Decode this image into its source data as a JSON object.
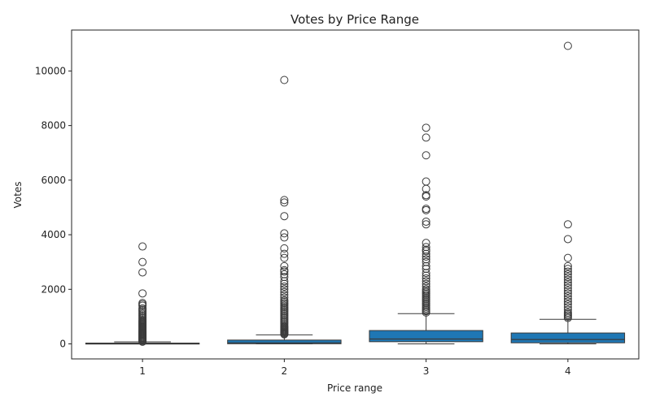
{
  "chart_data": {
    "type": "box",
    "title": "Votes by Price Range",
    "xlabel": "Price range",
    "ylabel": "Votes",
    "categories": [
      "1",
      "2",
      "3",
      "4"
    ],
    "yticks": [
      0,
      2000,
      4000,
      6000,
      8000,
      10000
    ],
    "ylim": [
      -550,
      11500
    ],
    "grid": false,
    "color": "#1f77b4",
    "boxes": [
      {
        "category": "1",
        "whisker_low": 0,
        "q1": 0,
        "median": 10,
        "q3": 30,
        "whisker_high": 75,
        "outliers": [
          80,
          110,
          140,
          170,
          200,
          230,
          260,
          290,
          320,
          350,
          380,
          410,
          440,
          470,
          500,
          530,
          560,
          590,
          620,
          650,
          680,
          710,
          740,
          770,
          800,
          830,
          860,
          900,
          950,
          1000,
          1050,
          1100,
          1150,
          1200,
          1250,
          1300,
          1400,
          1450,
          1500,
          1850,
          2620,
          3000,
          3570
        ]
      },
      {
        "category": "2",
        "whisker_low": 0,
        "q1": 5,
        "median": 40,
        "q3": 140,
        "whisker_high": 330,
        "outliers": [
          350,
          380,
          410,
          440,
          470,
          500,
          530,
          560,
          590,
          620,
          650,
          700,
          750,
          800,
          850,
          900,
          950,
          1000,
          1050,
          1100,
          1150,
          1200,
          1250,
          1300,
          1350,
          1400,
          1450,
          1500,
          1550,
          1600,
          1700,
          1800,
          1900,
          2000,
          2100,
          2200,
          2300,
          2450,
          2550,
          2650,
          2700,
          2850,
          3150,
          3300,
          3500,
          3900,
          4050,
          4680,
          5180,
          5270,
          9670
        ]
      },
      {
        "category": "3",
        "whisker_low": 0,
        "q1": 80,
        "median": 180,
        "q3": 490,
        "whisker_high": 1110,
        "outliers": [
          1150,
          1200,
          1250,
          1300,
          1350,
          1400,
          1450,
          1500,
          1550,
          1600,
          1650,
          1700,
          1750,
          1800,
          1850,
          1900,
          1950,
          2000,
          2100,
          2200,
          2300,
          2400,
          2500,
          2600,
          2750,
          2850,
          3000,
          3100,
          3200,
          3300,
          3400,
          3450,
          3550,
          3700,
          4380,
          4480,
          4900,
          4950,
          5400,
          5450,
          5680,
          5950,
          6910,
          7560,
          7920
        ]
      },
      {
        "category": "4",
        "whisker_low": 0,
        "q1": 40,
        "median": 160,
        "q3": 400,
        "whisker_high": 900,
        "outliers": [
          950,
          1000,
          1050,
          1100,
          1150,
          1250,
          1350,
          1450,
          1550,
          1650,
          1750,
          1850,
          1950,
          2050,
          2150,
          2250,
          2350,
          2450,
          2550,
          2650,
          2750,
          2850,
          3150,
          3840,
          4380,
          10920
        ]
      }
    ]
  }
}
